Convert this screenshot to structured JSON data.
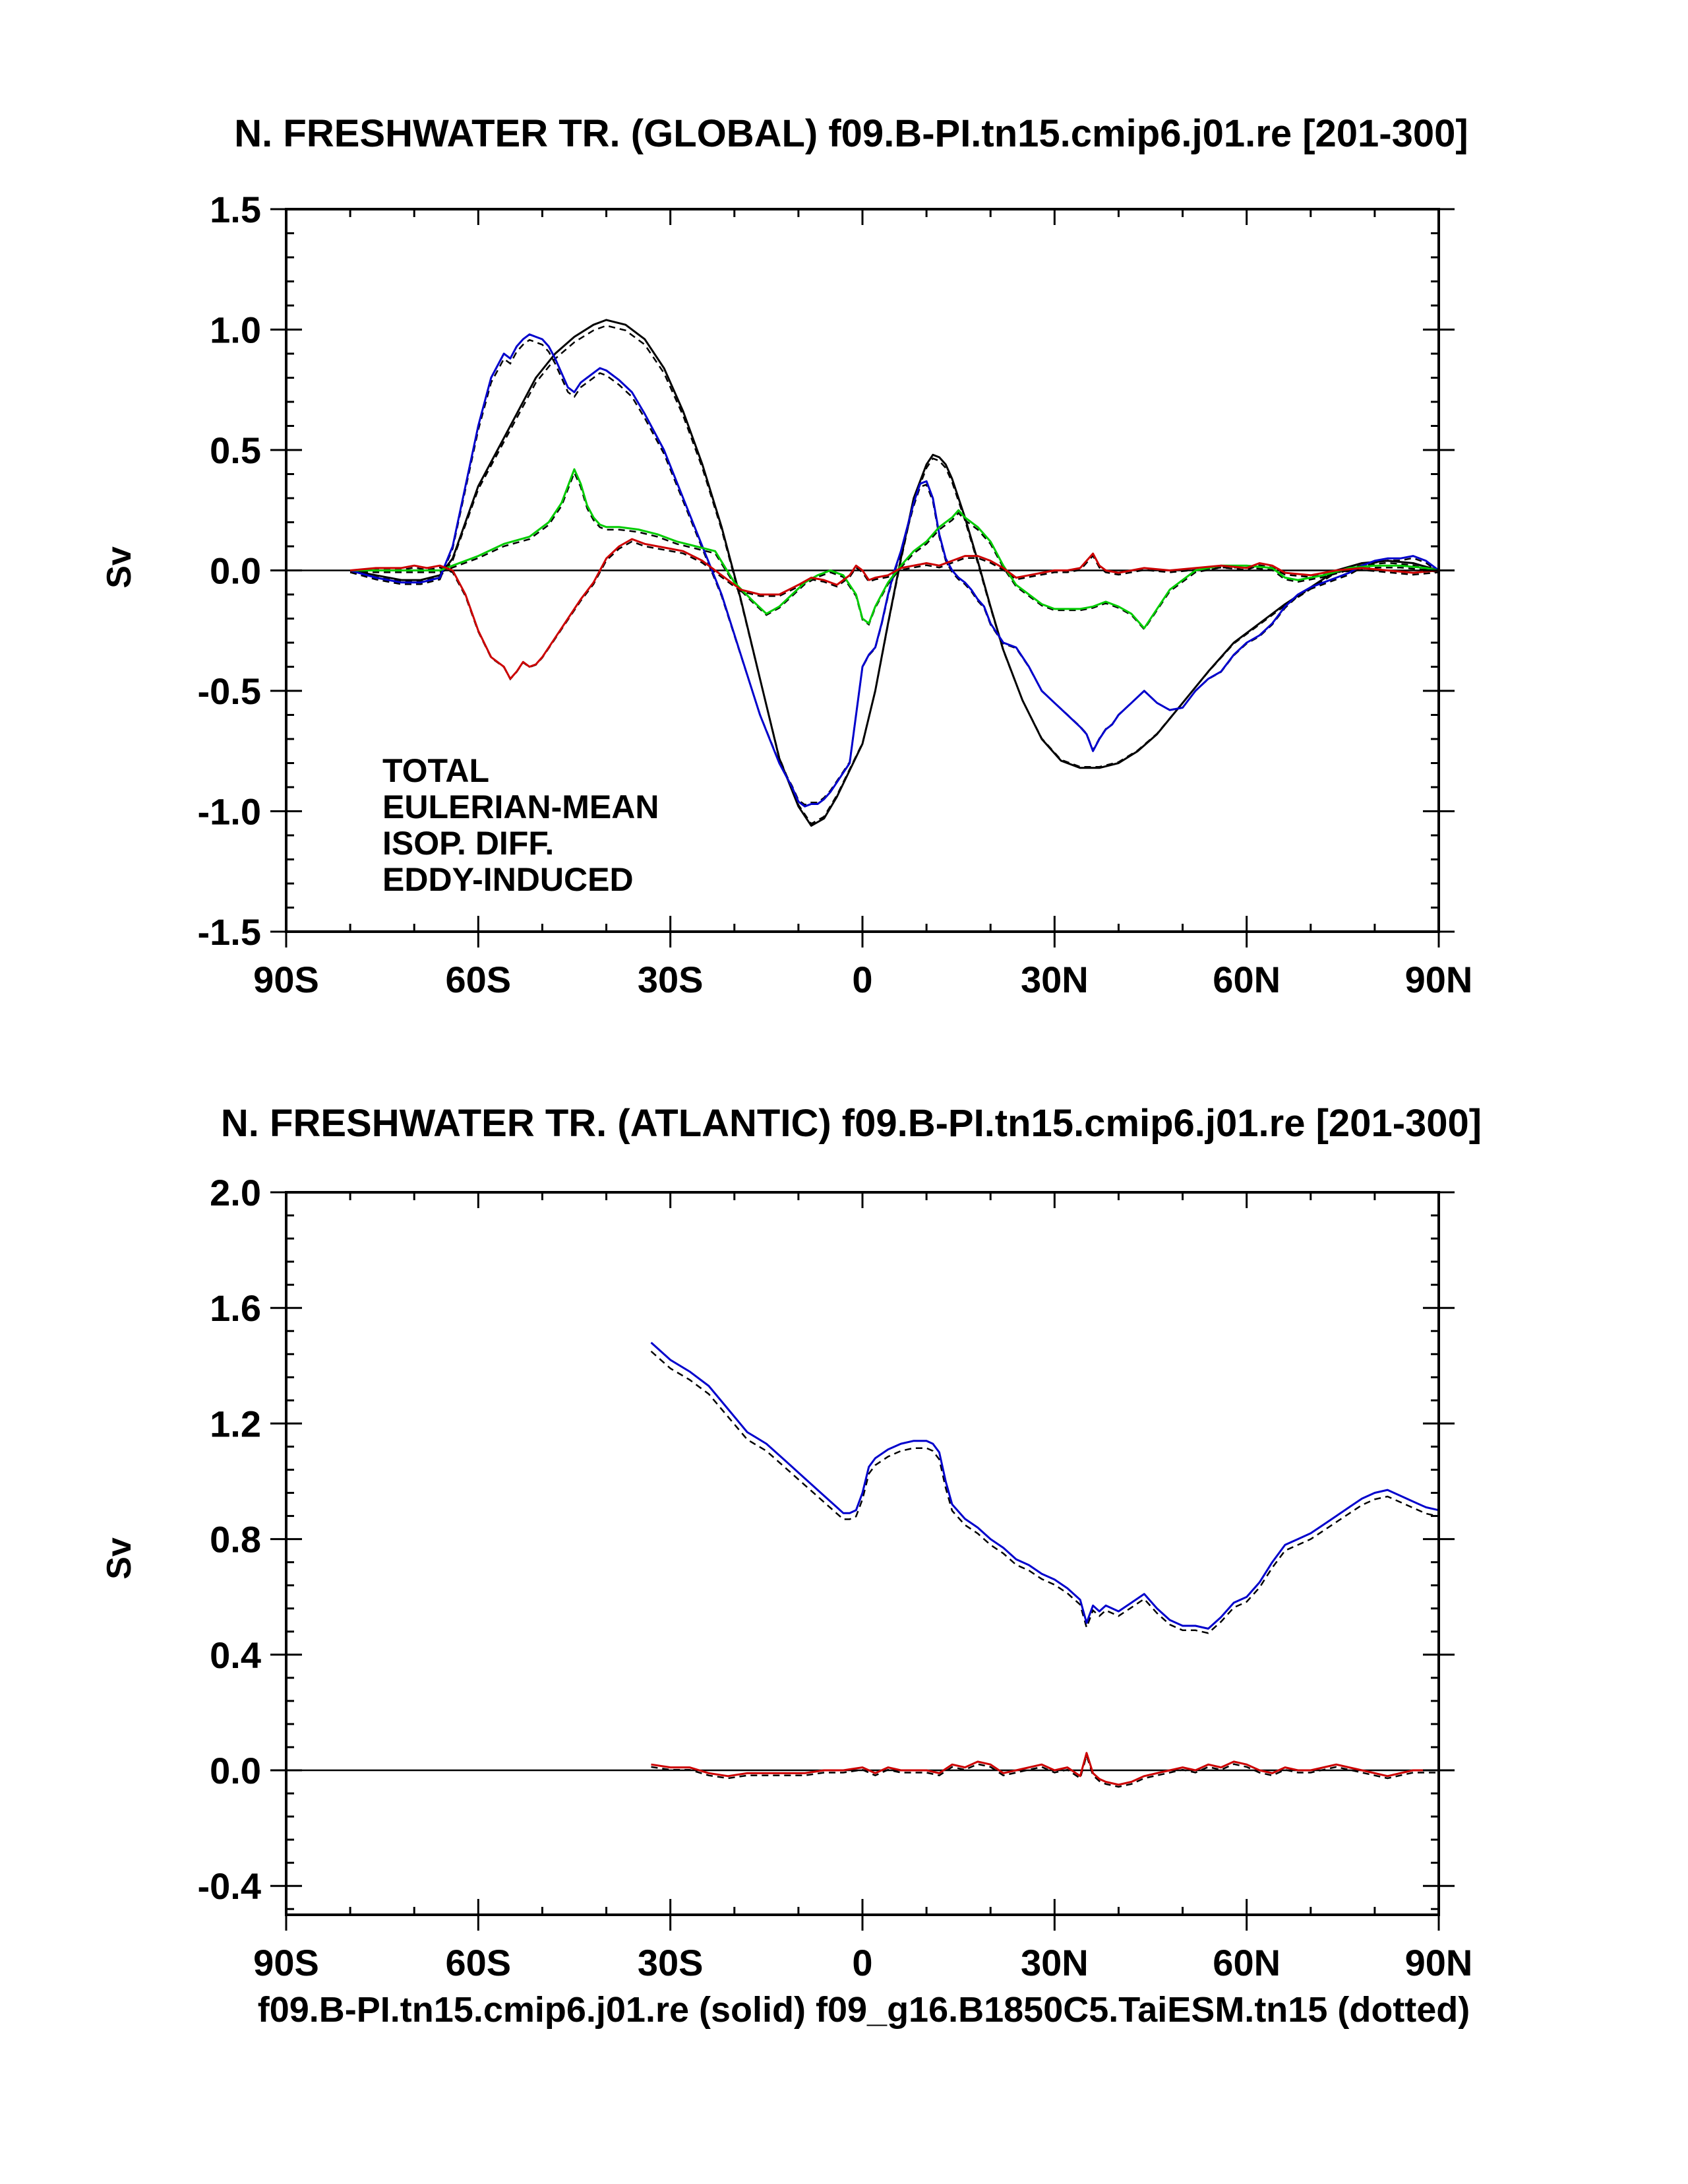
{
  "colors": {
    "total": "#000000",
    "eulerian_mean": "#0000cc",
    "isop_diff": "#00cc00",
    "eddy_induced": "#cc0000"
  },
  "footer": "f09.B-PI.tn15.cmip6.j01.re (solid) f09_g16.B1850C5.TaiESM.tn15 (dotted)",
  "chart_data": [
    {
      "type": "line",
      "title": "N. FRESHWATER TR. (GLOBAL) f09.B-PI.tn15.cmip6.j01.re [201-300]",
      "ylabel": "Sv",
      "xlim": [
        -90,
        90
      ],
      "ylim": [
        -1.5,
        1.5
      ],
      "xticks": [
        -90,
        -60,
        -30,
        0,
        30,
        60,
        90
      ],
      "xticklabels": [
        "90S",
        "60S",
        "30S",
        "0",
        "30N",
        "60N",
        "90N"
      ],
      "yticks": [
        -1.5,
        -1.0,
        -0.5,
        0.0,
        0.5,
        1.0,
        1.5
      ],
      "yticklabels": [
        "-1.5",
        "-1.0",
        "-0.5",
        "0.0",
        "0.5",
        "1.0",
        "1.5"
      ],
      "legend": {
        "placement": "lower-left",
        "entries": [
          "TOTAL",
          "EULERIAN-MEAN",
          "ISOP. DIFF.",
          "EDDY-INDUCED"
        ]
      },
      "series": [
        {
          "key": "total",
          "color": "total",
          "x": [
            -80,
            -76,
            -72,
            -69,
            -66,
            -64,
            -62,
            -60,
            -57,
            -54,
            -51,
            -48,
            -45,
            -42,
            -40,
            -37,
            -34,
            -31,
            -28,
            -25,
            -22,
            -19,
            -16,
            -13,
            -10,
            -8,
            -6,
            -4,
            -2,
            0,
            2,
            4,
            6,
            8,
            10,
            11,
            12,
            13,
            14,
            16,
            18,
            20,
            22,
            25,
            28,
            31,
            34,
            37,
            40,
            43,
            46,
            50,
            54,
            58,
            62,
            66,
            70,
            74,
            78,
            82,
            86,
            90
          ],
          "y": [
            0,
            -0.02,
            -0.04,
            -0.04,
            -0.02,
            0.05,
            0.2,
            0.35,
            0.5,
            0.65,
            0.8,
            0.9,
            0.97,
            1.02,
            1.04,
            1.02,
            0.96,
            0.84,
            0.66,
            0.44,
            0.18,
            -0.12,
            -0.45,
            -0.78,
            -0.98,
            -1.06,
            -1.03,
            -0.94,
            -0.83,
            -0.72,
            -0.5,
            -0.22,
            0.05,
            0.3,
            0.44,
            0.48,
            0.47,
            0.44,
            0.38,
            0.22,
            0.04,
            -0.15,
            -0.33,
            -0.54,
            -0.7,
            -0.79,
            -0.82,
            -0.82,
            -0.8,
            -0.75,
            -0.68,
            -0.55,
            -0.42,
            -0.3,
            -0.22,
            -0.14,
            -0.07,
            0,
            0.03,
            0.04,
            0.03,
            0
          ]
        },
        {
          "key": "eulerian_mean",
          "color": "eulerian_mean",
          "x": [
            -80,
            -76,
            -72,
            -69,
            -66,
            -64,
            -62,
            -60,
            -58,
            -56,
            -55,
            -54,
            -53,
            -52,
            -51,
            -50,
            -49,
            -48,
            -47,
            -46,
            -45,
            -44,
            -43,
            -42,
            -41,
            -40,
            -38,
            -36,
            -34,
            -31,
            -28,
            -25,
            -22,
            -19,
            -16,
            -13,
            -11,
            -10,
            -9,
            -8,
            -7,
            -6,
            -5,
            -4,
            -3,
            -2,
            -1,
            0,
            1,
            2,
            3,
            4,
            5,
            6,
            7,
            8,
            9,
            10,
            11,
            12,
            13,
            14,
            15,
            16,
            17,
            18,
            19,
            20,
            22,
            24,
            26,
            28,
            30,
            32,
            34,
            35,
            36,
            37,
            38,
            39,
            40,
            42,
            44,
            46,
            48,
            50,
            52,
            54,
            56,
            58,
            60,
            62,
            64,
            66,
            68,
            70,
            72,
            74,
            76,
            78,
            80,
            82,
            84,
            86,
            88,
            90
          ],
          "y": [
            0,
            -0.03,
            -0.05,
            -0.05,
            -0.03,
            0.1,
            0.35,
            0.6,
            0.8,
            0.9,
            0.88,
            0.93,
            0.96,
            0.98,
            0.97,
            0.96,
            0.93,
            0.88,
            0.82,
            0.76,
            0.74,
            0.78,
            0.8,
            0.82,
            0.84,
            0.83,
            0.79,
            0.74,
            0.65,
            0.5,
            0.3,
            0.1,
            -0.1,
            -0.35,
            -0.6,
            -0.8,
            -0.9,
            -0.96,
            -0.98,
            -0.97,
            -0.97,
            -0.95,
            -0.92,
            -0.88,
            -0.84,
            -0.8,
            -0.6,
            -0.4,
            -0.35,
            -0.32,
            -0.22,
            -0.1,
            0,
            0.08,
            0.18,
            0.28,
            0.36,
            0.37,
            0.3,
            0.15,
            0.05,
            0,
            -0.03,
            -0.05,
            -0.08,
            -0.12,
            -0.15,
            -0.22,
            -0.3,
            -0.32,
            -0.4,
            -0.5,
            -0.55,
            -0.6,
            -0.65,
            -0.68,
            -0.75,
            -0.7,
            -0.66,
            -0.64,
            -0.6,
            -0.55,
            -0.5,
            -0.55,
            -0.58,
            -0.57,
            -0.5,
            -0.45,
            -0.42,
            -0.35,
            -0.3,
            -0.27,
            -0.22,
            -0.15,
            -0.1,
            -0.07,
            -0.05,
            -0.03,
            -0.01,
            0.02,
            0.04,
            0.05,
            0.05,
            0.06,
            0.04,
            0
          ]
        },
        {
          "key": "isop_diff",
          "color": "isop_diff",
          "x": [
            -80,
            -70,
            -66,
            -64,
            -60,
            -56,
            -52,
            -49,
            -47,
            -46,
            -45,
            -44,
            -43,
            -42,
            -41,
            -40,
            -38,
            -35,
            -32,
            -29,
            -26,
            -23,
            -20,
            -17,
            -15,
            -13,
            -11,
            -9,
            -7,
            -5,
            -3,
            -1,
            0,
            1,
            2,
            3,
            4,
            6,
            8,
            10,
            12,
            14,
            15,
            16,
            18,
            20,
            22,
            24,
            26,
            28,
            30,
            32,
            34,
            36,
            38,
            40,
            42,
            44,
            46,
            48,
            52,
            56,
            60,
            64,
            66,
            68,
            72,
            76,
            80,
            84,
            88,
            90
          ],
          "y": [
            0,
            0,
            0,
            0.02,
            0.06,
            0.11,
            0.14,
            0.2,
            0.28,
            0.35,
            0.42,
            0.36,
            0.27,
            0.22,
            0.19,
            0.18,
            0.18,
            0.17,
            0.15,
            0.12,
            0.1,
            0.08,
            -0.05,
            -0.13,
            -0.18,
            -0.15,
            -0.1,
            -0.05,
            -0.02,
            0,
            -0.02,
            -0.1,
            -0.2,
            -0.22,
            -0.15,
            -0.1,
            -0.05,
            0.02,
            0.08,
            0.12,
            0.18,
            0.22,
            0.25,
            0.22,
            0.18,
            0.12,
            0.02,
            -0.06,
            -0.1,
            -0.14,
            -0.16,
            -0.16,
            -0.16,
            -0.15,
            -0.13,
            -0.15,
            -0.18,
            -0.24,
            -0.16,
            -0.08,
            0,
            0.02,
            0.02,
            0.01,
            -0.03,
            -0.04,
            -0.02,
            0.01,
            0.02,
            0.02,
            0.01,
            0
          ]
        },
        {
          "key": "eddy_induced",
          "color": "eddy_induced",
          "x": [
            -80,
            -76,
            -72,
            -70,
            -68,
            -66,
            -64,
            -62,
            -60,
            -58,
            -56,
            -55,
            -54,
            -53,
            -52,
            -51,
            -50,
            -48,
            -46,
            -44,
            -42,
            -40,
            -38,
            -36,
            -34,
            -32,
            -30,
            -28,
            -25,
            -22,
            -19,
            -16,
            -13,
            -10,
            -8,
            -6,
            -4,
            -2,
            -1,
            0,
            1,
            2,
            4,
            6,
            8,
            10,
            12,
            14,
            16,
            18,
            20,
            22,
            24,
            26,
            28,
            30,
            32,
            34,
            35,
            36,
            37,
            38,
            40,
            44,
            48,
            52,
            56,
            60,
            62,
            64,
            66,
            70,
            74,
            78,
            82,
            86,
            90
          ],
          "y": [
            0,
            0.01,
            0.01,
            0.02,
            0.01,
            0.02,
            0,
            -0.1,
            -0.25,
            -0.36,
            -0.4,
            -0.45,
            -0.42,
            -0.38,
            -0.4,
            -0.39,
            -0.36,
            -0.28,
            -0.2,
            -0.12,
            -0.05,
            0.05,
            0.1,
            0.13,
            0.11,
            0.1,
            0.09,
            0.08,
            0.04,
            -0.02,
            -0.08,
            -0.1,
            -0.1,
            -0.06,
            -0.03,
            -0.04,
            -0.06,
            -0.02,
            0.02,
            0,
            -0.04,
            -0.03,
            -0.02,
            0.01,
            0.02,
            0.03,
            0.02,
            0.04,
            0.06,
            0.06,
            0.04,
            0.01,
            -0.03,
            -0.02,
            -0.01,
            0,
            0,
            0.01,
            0.04,
            0.07,
            0.02,
            0,
            -0.01,
            0.01,
            0,
            0.01,
            0.02,
            0.01,
            0.03,
            0.02,
            -0.01,
            -0.02,
            0,
            0.01,
            0,
            -0.01,
            0
          ]
        }
      ]
    },
    {
      "type": "line",
      "title": "N. FRESHWATER TR. (ATLANTIC) f09.B-PI.tn15.cmip6.j01.re [201-300]",
      "ylabel": "Sv",
      "xlim": [
        -90,
        90
      ],
      "ylim": [
        -0.5,
        2.0
      ],
      "xticks": [
        -90,
        -60,
        -30,
        0,
        30,
        60,
        90
      ],
      "xticklabels": [
        "90S",
        "60S",
        "30S",
        "0",
        "30N",
        "60N",
        "90N"
      ],
      "yticks": [
        -0.4,
        0.0,
        0.4,
        0.8,
        1.2,
        1.6,
        2.0
      ],
      "yticklabels": [
        "-0.4",
        "0.0",
        "0.4",
        "0.8",
        "1.2",
        "1.6",
        "2.0"
      ],
      "series": [
        {
          "key": "eulerian_mean",
          "color": "eulerian_mean",
          "x": [
            -33,
            -30,
            -27,
            -24,
            -21,
            -18,
            -15,
            -12,
            -9,
            -6,
            -4,
            -3,
            -2,
            -1,
            0,
            1,
            2,
            4,
            6,
            8,
            10,
            11,
            12,
            13,
            14,
            16,
            18,
            20,
            22,
            24,
            26,
            28,
            30,
            32,
            34,
            35,
            36,
            37,
            38,
            40,
            42,
            44,
            46,
            48,
            50,
            52,
            54,
            56,
            58,
            60,
            62,
            64,
            66,
            68,
            70,
            72,
            74,
            76,
            78,
            80,
            82,
            84,
            86,
            88,
            90
          ],
          "y": [
            1.48,
            1.42,
            1.38,
            1.33,
            1.25,
            1.17,
            1.13,
            1.07,
            1.01,
            0.95,
            0.91,
            0.89,
            0.89,
            0.9,
            0.96,
            1.05,
            1.08,
            1.11,
            1.13,
            1.14,
            1.14,
            1.13,
            1.1,
            1.0,
            0.92,
            0.87,
            0.84,
            0.8,
            0.77,
            0.73,
            0.71,
            0.68,
            0.66,
            0.63,
            0.59,
            0.51,
            0.57,
            0.55,
            0.57,
            0.55,
            0.58,
            0.61,
            0.56,
            0.52,
            0.5,
            0.5,
            0.49,
            0.53,
            0.58,
            0.6,
            0.65,
            0.72,
            0.78,
            0.8,
            0.82,
            0.85,
            0.88,
            0.91,
            0.94,
            0.96,
            0.97,
            0.95,
            0.93,
            0.91,
            0.9
          ]
        },
        {
          "key": "eddy_induced",
          "color": "eddy_induced",
          "x": [
            -33,
            -30,
            -27,
            -24,
            -21,
            -18,
            -15,
            -12,
            -9,
            -6,
            -3,
            0,
            2,
            4,
            6,
            8,
            10,
            12,
            14,
            16,
            18,
            20,
            22,
            24,
            26,
            28,
            30,
            32,
            34,
            35,
            36,
            37,
            38,
            40,
            42,
            44,
            46,
            48,
            50,
            52,
            54,
            56,
            58,
            60,
            62,
            64,
            66,
            68,
            70,
            72,
            74,
            76,
            78,
            80,
            82,
            84,
            86,
            88,
            90
          ],
          "y": [
            0.02,
            0.01,
            0.01,
            -0.01,
            -0.02,
            -0.01,
            -0.01,
            -0.01,
            -0.01,
            0,
            0,
            0.01,
            -0.01,
            0.01,
            0,
            0,
            0,
            -0.01,
            0.02,
            0.01,
            0.03,
            0.02,
            -0.01,
            0,
            0.01,
            0.02,
            0,
            0.01,
            -0.02,
            0.06,
            -0.01,
            -0.03,
            -0.04,
            -0.05,
            -0.04,
            -0.02,
            -0.01,
            0,
            0.01,
            0,
            0.02,
            0.01,
            0.03,
            0.02,
            0,
            -0.01,
            0.01,
            0,
            0,
            0.01,
            0.02,
            0.01,
            0,
            -0.01,
            -0.02,
            -0.01,
            0,
            0,
            0
          ]
        }
      ]
    }
  ]
}
